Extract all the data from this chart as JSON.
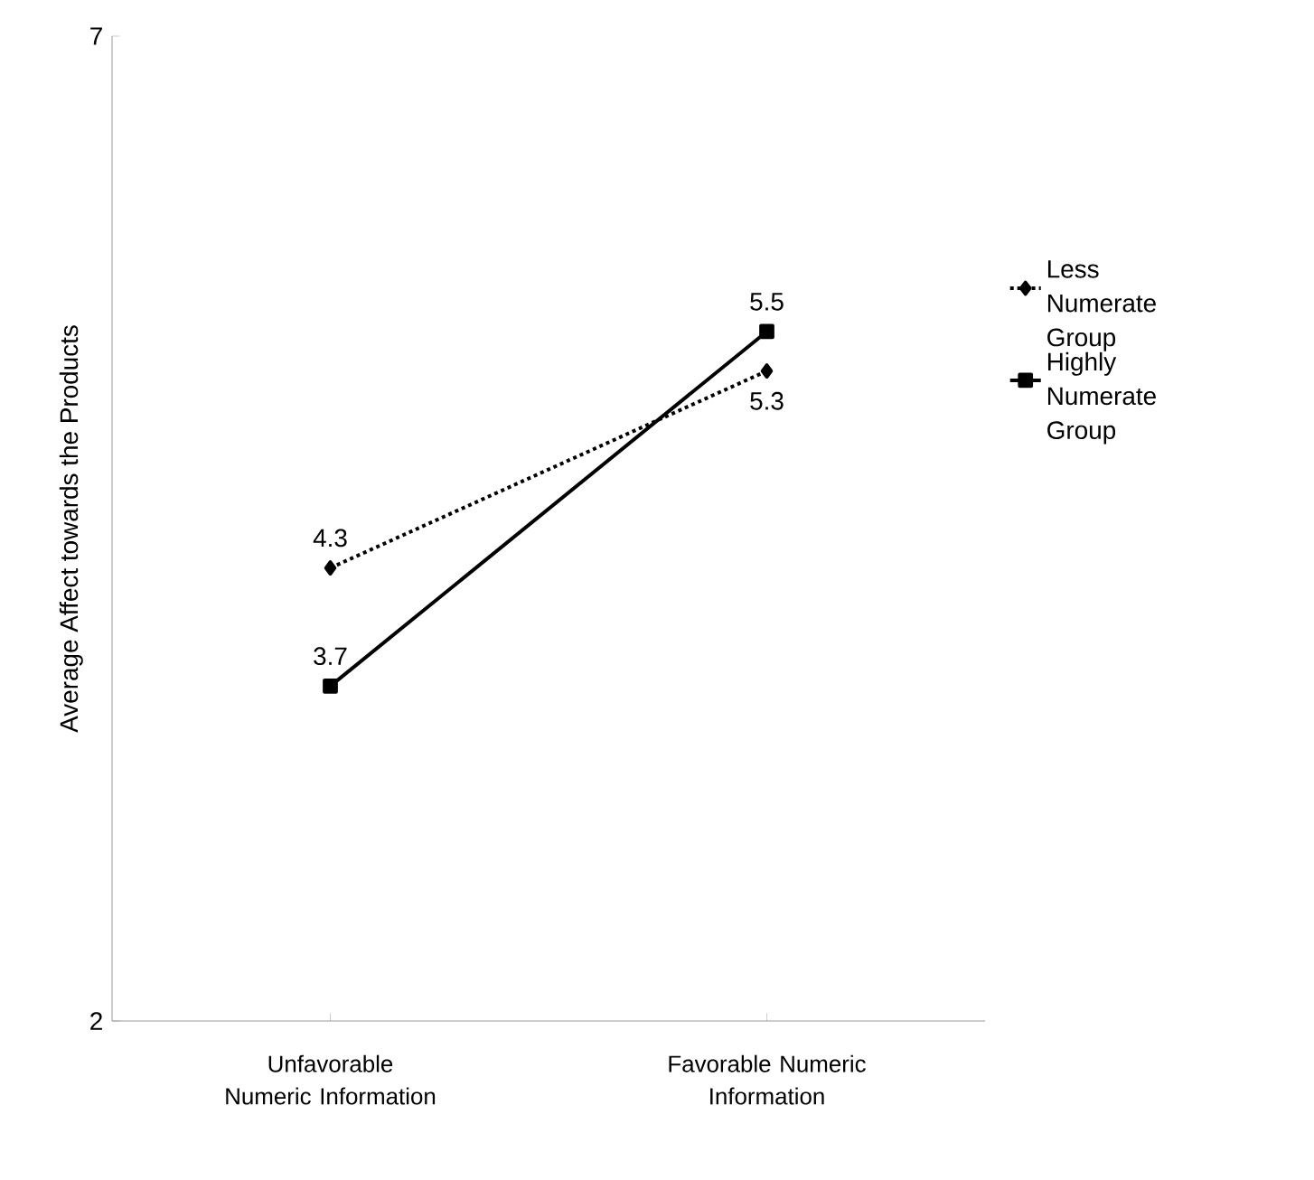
{
  "chart_data": {
    "type": "line",
    "ylabel": "Average Affect towards the Products",
    "categories": [
      "Unfavorable Numeric Information",
      "Favorable Numeric Information"
    ],
    "series": [
      {
        "name": "Less Numerate Group",
        "color": "#000000",
        "values": [
          4.3,
          5.3
        ],
        "marker": "diamond",
        "line_style": "dotted"
      },
      {
        "name": "Highly Numerate Group",
        "color": "#000000",
        "values": [
          3.7,
          5.5
        ],
        "marker": "square",
        "line_style": "solid"
      }
    ],
    "ylim": [
      2,
      7
    ],
    "yticks": [
      2,
      7
    ],
    "grid": false,
    "legend": "right",
    "data_labels": true
  }
}
